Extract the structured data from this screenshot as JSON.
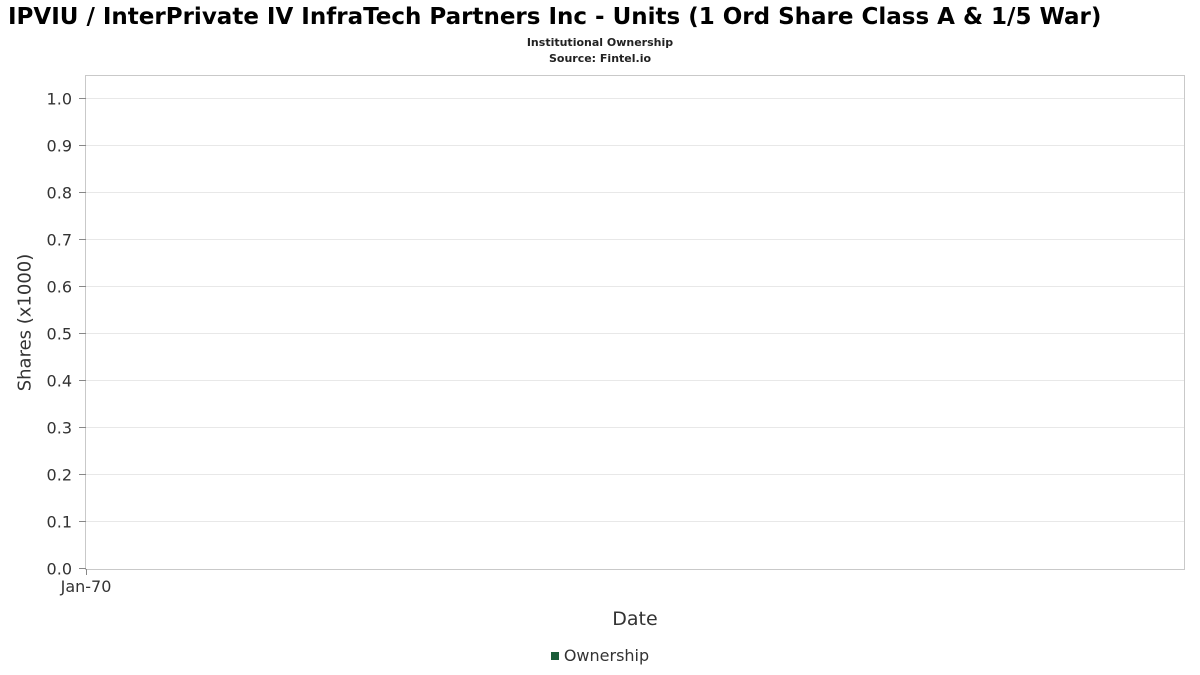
{
  "chart_data": {
    "type": "line",
    "title": "IPVIU / InterPrivate IV InfraTech Partners Inc - Units (1 Ord Share Class A & 1/5 War)",
    "subtitle": "Institutional Ownership",
    "source": "Source: Fintel.io",
    "xlabel": "Date",
    "ylabel": "Shares (x1000)",
    "ylim": [
      0,
      1.053
    ],
    "yticks": [
      0.0,
      0.1,
      0.2,
      0.3,
      0.4,
      0.5,
      0.6,
      0.7,
      0.8,
      0.9,
      1.0
    ],
    "ytick_labels": [
      "0.0",
      "0.1",
      "0.2",
      "0.3",
      "0.4",
      "0.5",
      "0.6",
      "0.7",
      "0.8",
      "0.9",
      "1.0"
    ],
    "xticks": [
      0
    ],
    "xtick_labels": [
      "Jan-70"
    ],
    "grid": true,
    "series": [
      {
        "name": "Ownership",
        "x": [],
        "values": []
      }
    ],
    "legend": {
      "position": "bottom",
      "entries": [
        {
          "label": "Ownership",
          "color": "#1a5c38"
        }
      ]
    }
  }
}
